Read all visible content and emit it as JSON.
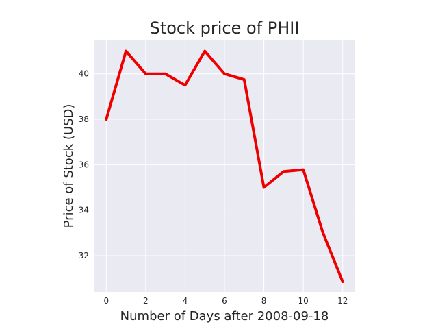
{
  "chart_data": {
    "type": "line",
    "title": "Stock price of PHII",
    "xlabel": "Number of Days after 2008-09-18",
    "ylabel": "Price of Stock (USD)",
    "x": [
      0,
      1,
      2,
      3,
      4,
      5,
      6,
      7,
      8,
      9,
      10,
      11,
      12
    ],
    "series": [
      {
        "values": [
          38.0,
          41.0,
          40.0,
          40.0,
          39.5,
          41.0,
          40.0,
          39.75,
          35.0,
          35.7,
          35.78,
          33.0,
          30.85
        ],
        "color": "#ee0000"
      }
    ],
    "xlim": [
      -0.6,
      12.6
    ],
    "ylim": [
      30.4,
      41.5
    ],
    "xticks": [
      0,
      2,
      4,
      6,
      8,
      10,
      12
    ],
    "yticks": [
      32,
      34,
      36,
      38,
      40
    ],
    "grid": true,
    "background": "#eaeaf2",
    "grid_color": "#ffffff"
  }
}
